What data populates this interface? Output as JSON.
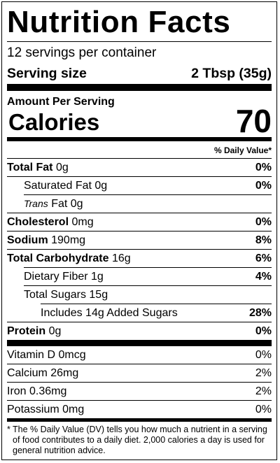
{
  "title": "Nutrition Facts",
  "servings_per_container": "12 servings per container",
  "serving_size_label": "Serving size",
  "serving_size_value": "2 Tbsp (35g)",
  "amount_per_serving": "Amount Per Serving",
  "calories_label": "Calories",
  "calories_value": "70",
  "daily_value_header": "% Daily Value*",
  "nutrients": [
    {
      "name": "Total Fat",
      "amount": "0g",
      "dv": "0%"
    },
    {
      "name": "Saturated Fat",
      "amount": "0g",
      "dv": "0%"
    },
    {
      "name": "Trans",
      "amount": "Fat 0g",
      "dv": ""
    },
    {
      "name": "Cholesterol",
      "amount": "0mg",
      "dv": "0%"
    },
    {
      "name": "Sodium",
      "amount": "190mg",
      "dv": "8%"
    },
    {
      "name": "Total Carbohydrate",
      "amount": "16g",
      "dv": "6%"
    },
    {
      "name": "Dietary Fiber",
      "amount": "1g",
      "dv": "4%"
    },
    {
      "name": "Total Sugars",
      "amount": "15g",
      "dv": ""
    },
    {
      "name": "Includes 14g Added Sugars",
      "amount": "",
      "dv": "28%"
    },
    {
      "name": "Protein",
      "amount": "0g",
      "dv": "0%"
    }
  ],
  "vitamins": [
    {
      "name": "Vitamin D 0mcg",
      "dv": "0%"
    },
    {
      "name": "Calcium 26mg",
      "dv": "2%"
    },
    {
      "name": "Iron 0.36mg",
      "dv": "2%"
    },
    {
      "name": "Potassium 0mg",
      "dv": "0%"
    }
  ],
  "footnote_asterisk": "*",
  "footnote": "The % Daily Value (DV) tells you how much a nutrient in a serving of food contributes to a daily diet. 2,000 calories a day is used for general nutrition advice."
}
